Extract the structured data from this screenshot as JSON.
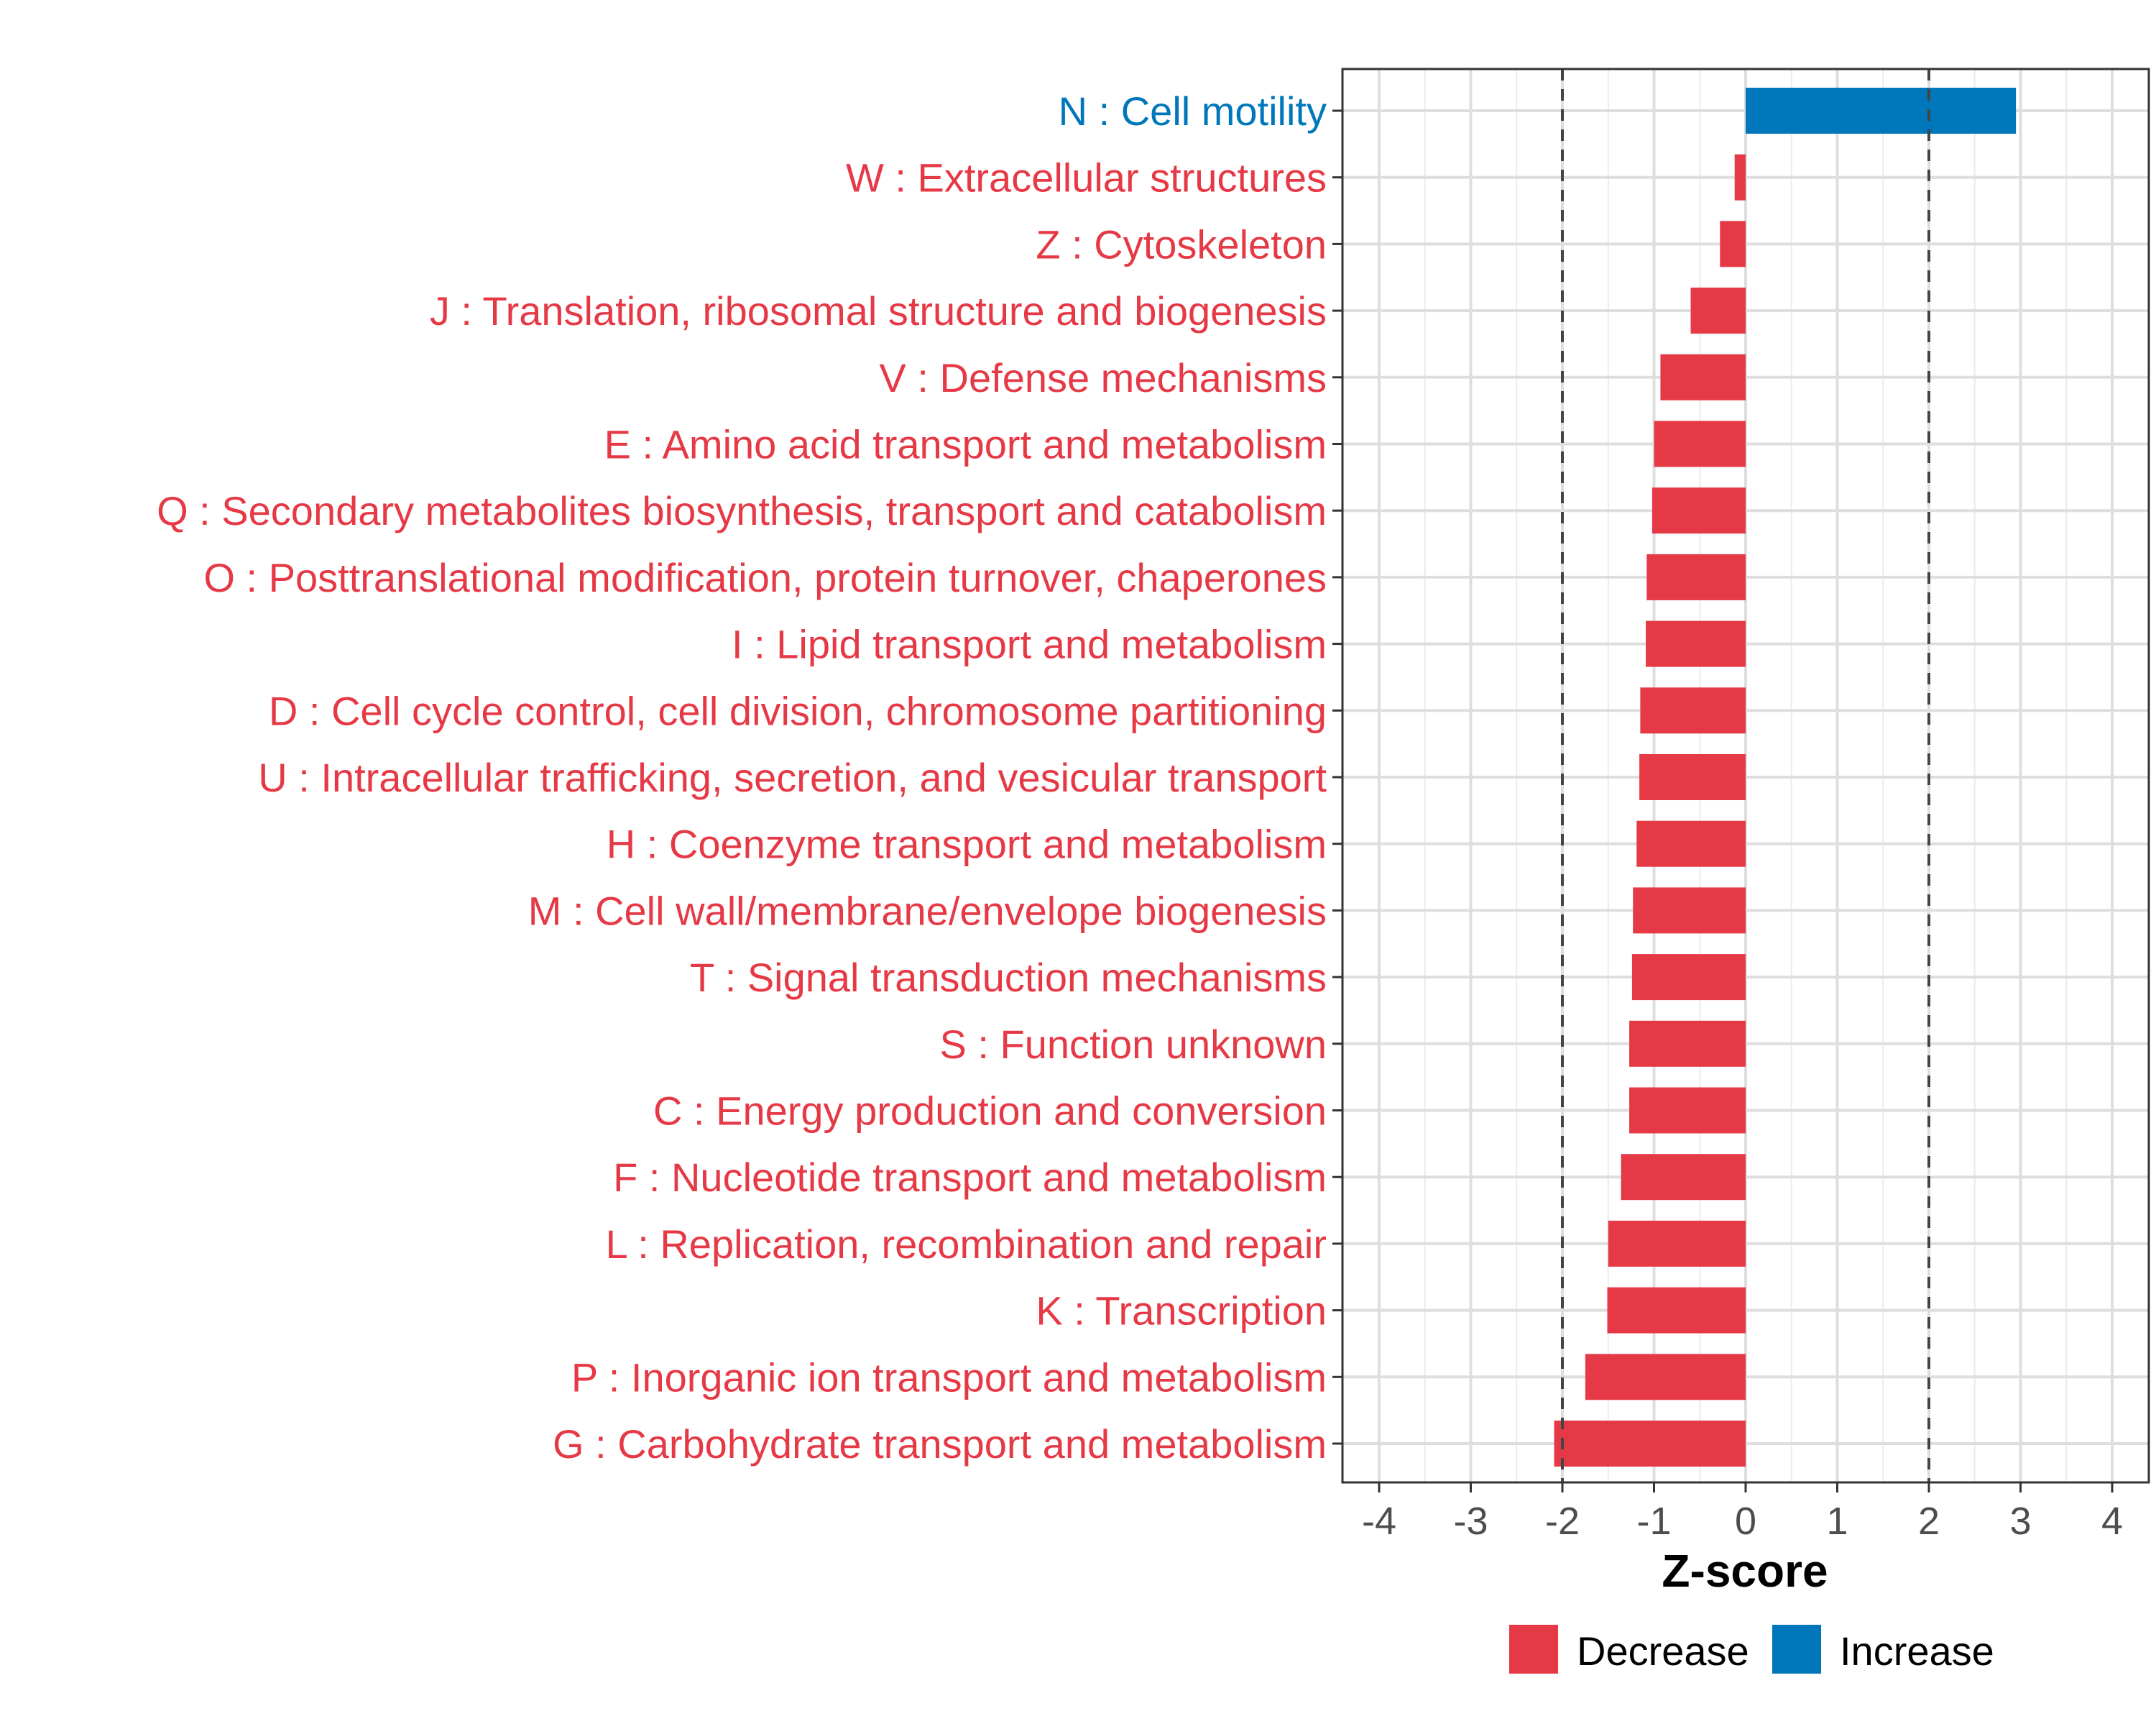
{
  "chart_data": {
    "type": "bar",
    "orientation": "horizontal",
    "xlabel": "Z-score",
    "ylabel": "",
    "xlim": [
      -4.4,
      4.4
    ],
    "x_ticks": [
      -4,
      -3,
      -2,
      -1,
      0,
      1,
      2,
      3,
      4
    ],
    "x_tick_labels": [
      "-4",
      "-3",
      "-2",
      "-1",
      "0",
      "1",
      "2",
      "3",
      "4"
    ],
    "reference_lines": [
      -2,
      2
    ],
    "grid": true,
    "colors": {
      "Decrease": "#e63946",
      "Increase": "#0077bb"
    },
    "legend": {
      "placement": "bottom",
      "entries": [
        "Decrease",
        "Increase"
      ]
    },
    "categories": [
      "N : Cell motility",
      "W : Extracellular structures",
      "Z : Cytoskeleton",
      "J : Translation, ribosomal structure and biogenesis",
      "V : Defense mechanisms",
      "E : Amino acid transport and metabolism",
      "Q : Secondary metabolites biosynthesis, transport and catabolism",
      "O : Posttranslational modification, protein turnover, chaperones",
      "I : Lipid transport and metabolism",
      "D : Cell cycle control, cell division, chromosome partitioning",
      "U : Intracellular trafficking, secretion, and vesicular transport",
      "H : Coenzyme transport and metabolism",
      "M : Cell wall/membrane/envelope biogenesis",
      "T : Signal transduction mechanisms",
      "S : Function unknown",
      "C : Energy production and conversion",
      "F : Nucleotide transport and metabolism",
      "L : Replication, recombination and repair",
      "K : Transcription",
      "P : Inorganic ion transport and metabolism",
      "G : Carbohydrate transport and metabolism"
    ],
    "values": [
      2.95,
      -0.12,
      -0.28,
      -0.6,
      -0.93,
      -1.0,
      -1.02,
      -1.08,
      -1.09,
      -1.15,
      -1.16,
      -1.19,
      -1.23,
      -1.24,
      -1.27,
      -1.27,
      -1.36,
      -1.5,
      -1.51,
      -1.75,
      -2.09
    ],
    "groups": [
      "Increase",
      "Decrease",
      "Decrease",
      "Decrease",
      "Decrease",
      "Decrease",
      "Decrease",
      "Decrease",
      "Decrease",
      "Decrease",
      "Decrease",
      "Decrease",
      "Decrease",
      "Decrease",
      "Decrease",
      "Decrease",
      "Decrease",
      "Decrease",
      "Decrease",
      "Decrease",
      "Decrease"
    ]
  }
}
